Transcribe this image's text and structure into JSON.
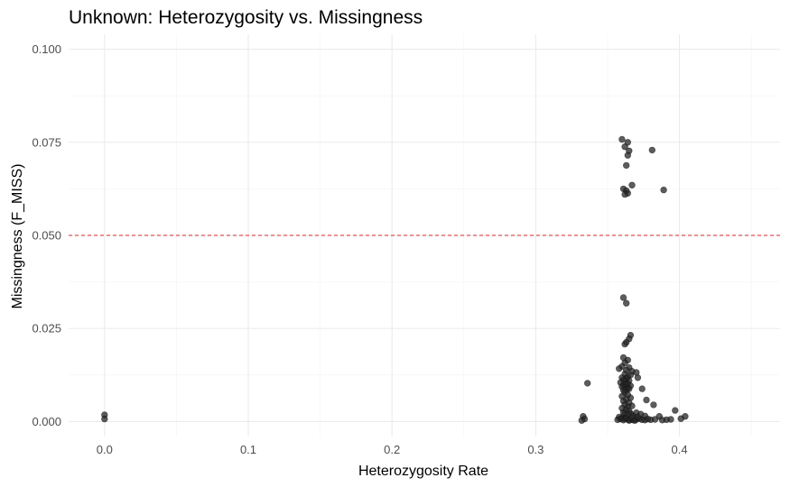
{
  "chart_data": {
    "type": "scatter",
    "title": "Unknown: Heterozygosity vs. Missingness",
    "xlabel": "Heterozygosity Rate",
    "ylabel": "Missingness (F_MISS)",
    "xlim": [
      -0.025,
      0.47
    ],
    "ylim": [
      -0.004,
      0.104
    ],
    "x_ticks": [
      0.0,
      0.1,
      0.2,
      0.3,
      0.4
    ],
    "x_tick_labels": [
      "0.0",
      "0.1",
      "0.2",
      "0.3",
      "0.4"
    ],
    "y_ticks": [
      0.0,
      0.025,
      0.05,
      0.075,
      0.1
    ],
    "y_tick_labels": [
      "0.000",
      "0.025",
      "0.050",
      "0.075",
      "0.100"
    ],
    "grid": true,
    "threshold_line": {
      "y": 0.05,
      "style": "dashed",
      "color": "#d62728"
    },
    "point_color": "#262626",
    "points": [
      {
        "x": 0.0,
        "y": 0.0018
      },
      {
        "x": 0.0,
        "y": 0.0007
      },
      {
        "x": 0.36,
        "y": 0.0758
      },
      {
        "x": 0.364,
        "y": 0.075
      },
      {
        "x": 0.362,
        "y": 0.0738
      },
      {
        "x": 0.365,
        "y": 0.0727
      },
      {
        "x": 0.364,
        "y": 0.0715
      },
      {
        "x": 0.381,
        "y": 0.0729
      },
      {
        "x": 0.363,
        "y": 0.0688
      },
      {
        "x": 0.367,
        "y": 0.0635
      },
      {
        "x": 0.361,
        "y": 0.0625
      },
      {
        "x": 0.363,
        "y": 0.062
      },
      {
        "x": 0.364,
        "y": 0.0613
      },
      {
        "x": 0.362,
        "y": 0.061
      },
      {
        "x": 0.389,
        "y": 0.0622
      },
      {
        "x": 0.361,
        "y": 0.0333
      },
      {
        "x": 0.363,
        "y": 0.0318
      },
      {
        "x": 0.366,
        "y": 0.0232
      },
      {
        "x": 0.365,
        "y": 0.0222
      },
      {
        "x": 0.363,
        "y": 0.0213
      },
      {
        "x": 0.362,
        "y": 0.0208
      },
      {
        "x": 0.361,
        "y": 0.0172
      },
      {
        "x": 0.364,
        "y": 0.0165
      },
      {
        "x": 0.362,
        "y": 0.0158
      },
      {
        "x": 0.36,
        "y": 0.0148
      },
      {
        "x": 0.365,
        "y": 0.0145
      },
      {
        "x": 0.363,
        "y": 0.0138
      },
      {
        "x": 0.358,
        "y": 0.0142
      },
      {
        "x": 0.367,
        "y": 0.0135
      },
      {
        "x": 0.37,
        "y": 0.0132
      },
      {
        "x": 0.362,
        "y": 0.0128
      },
      {
        "x": 0.366,
        "y": 0.0125
      },
      {
        "x": 0.364,
        "y": 0.012
      },
      {
        "x": 0.36,
        "y": 0.0118
      },
      {
        "x": 0.363,
        "y": 0.0115
      },
      {
        "x": 0.361,
        "y": 0.0112
      },
      {
        "x": 0.365,
        "y": 0.011
      },
      {
        "x": 0.362,
        "y": 0.0108
      },
      {
        "x": 0.359,
        "y": 0.0105
      },
      {
        "x": 0.364,
        "y": 0.0102
      },
      {
        "x": 0.363,
        "y": 0.01
      },
      {
        "x": 0.361,
        "y": 0.0098
      },
      {
        "x": 0.366,
        "y": 0.0096
      },
      {
        "x": 0.36,
        "y": 0.0094
      },
      {
        "x": 0.362,
        "y": 0.0092
      },
      {
        "x": 0.364,
        "y": 0.009
      },
      {
        "x": 0.365,
        "y": 0.0088
      },
      {
        "x": 0.363,
        "y": 0.0086
      },
      {
        "x": 0.361,
        "y": 0.0084
      },
      {
        "x": 0.336,
        "y": 0.0103
      },
      {
        "x": 0.371,
        "y": 0.0118
      },
      {
        "x": 0.362,
        "y": 0.0078
      },
      {
        "x": 0.364,
        "y": 0.0072
      },
      {
        "x": 0.36,
        "y": 0.0068
      },
      {
        "x": 0.366,
        "y": 0.0064
      },
      {
        "x": 0.363,
        "y": 0.006
      },
      {
        "x": 0.361,
        "y": 0.0055
      },
      {
        "x": 0.365,
        "y": 0.005
      },
      {
        "x": 0.362,
        "y": 0.0045
      },
      {
        "x": 0.367,
        "y": 0.0042
      },
      {
        "x": 0.374,
        "y": 0.0088
      },
      {
        "x": 0.377,
        "y": 0.0058
      },
      {
        "x": 0.382,
        "y": 0.0045
      },
      {
        "x": 0.364,
        "y": 0.004
      },
      {
        "x": 0.36,
        "y": 0.0036
      },
      {
        "x": 0.363,
        "y": 0.0032
      },
      {
        "x": 0.365,
        "y": 0.0028
      },
      {
        "x": 0.361,
        "y": 0.0025
      },
      {
        "x": 0.366,
        "y": 0.0022
      },
      {
        "x": 0.362,
        "y": 0.002
      },
      {
        "x": 0.364,
        "y": 0.0018
      },
      {
        "x": 0.368,
        "y": 0.0016
      },
      {
        "x": 0.37,
        "y": 0.0024
      },
      {
        "x": 0.373,
        "y": 0.002
      },
      {
        "x": 0.376,
        "y": 0.0015
      },
      {
        "x": 0.358,
        "y": 0.0012
      },
      {
        "x": 0.36,
        "y": 0.001
      },
      {
        "x": 0.362,
        "y": 0.0008
      },
      {
        "x": 0.364,
        "y": 0.0006
      },
      {
        "x": 0.366,
        "y": 0.0005
      },
      {
        "x": 0.368,
        "y": 0.0004
      },
      {
        "x": 0.37,
        "y": 0.0006
      },
      {
        "x": 0.372,
        "y": 0.0008
      },
      {
        "x": 0.374,
        "y": 0.0005
      },
      {
        "x": 0.376,
        "y": 0.0004
      },
      {
        "x": 0.378,
        "y": 0.0007
      },
      {
        "x": 0.38,
        "y": 0.0005
      },
      {
        "x": 0.383,
        "y": 0.0006
      },
      {
        "x": 0.386,
        "y": 0.0014
      },
      {
        "x": 0.388,
        "y": 0.0004
      },
      {
        "x": 0.391,
        "y": 0.0005
      },
      {
        "x": 0.394,
        "y": 0.0006
      },
      {
        "x": 0.397,
        "y": 0.003
      },
      {
        "x": 0.401,
        "y": 0.0008
      },
      {
        "x": 0.404,
        "y": 0.0014
      },
      {
        "x": 0.357,
        "y": 0.0005
      },
      {
        "x": 0.359,
        "y": 0.0007
      },
      {
        "x": 0.361,
        "y": 0.0004
      },
      {
        "x": 0.363,
        "y": 0.0009
      },
      {
        "x": 0.365,
        "y": 0.0003
      },
      {
        "x": 0.367,
        "y": 0.0011
      },
      {
        "x": 0.369,
        "y": 0.0003
      },
      {
        "x": 0.371,
        "y": 0.0012
      },
      {
        "x": 0.333,
        "y": 0.0014
      },
      {
        "x": 0.334,
        "y": 0.0007
      },
      {
        "x": 0.332,
        "y": 0.0003
      }
    ]
  }
}
